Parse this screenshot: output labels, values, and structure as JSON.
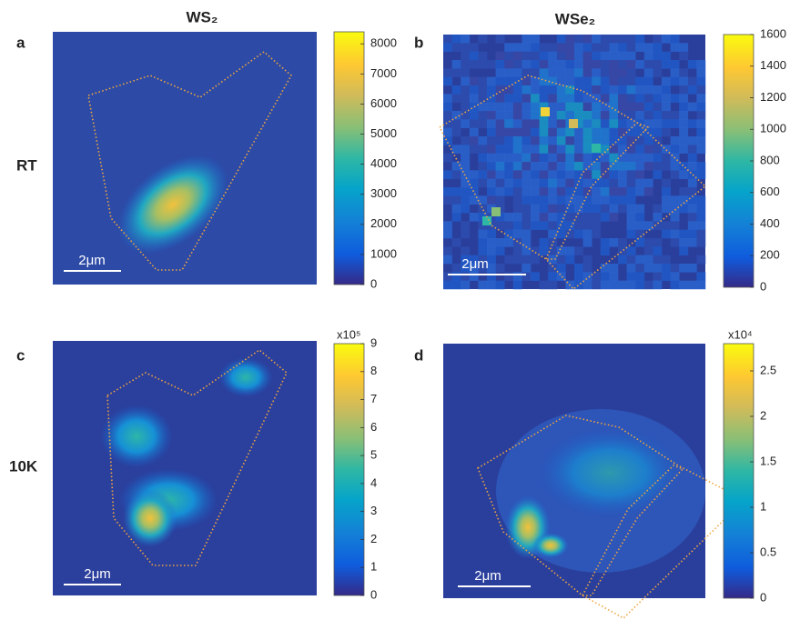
{
  "column_titles": [
    "WS₂",
    "WSe₂"
  ],
  "row_labels": [
    "RT",
    "10K"
  ],
  "panels": [
    {
      "label": "a",
      "scale_bar": "2μm",
      "colorbar": {
        "lim": [
          0,
          8400
        ],
        "ticks": [
          0,
          1000,
          2000,
          3000,
          4000,
          5000,
          6000,
          7000,
          8000
        ]
      }
    },
    {
      "label": "b",
      "scale_bar": "2μm",
      "colorbar": {
        "lim": [
          0,
          1600
        ],
        "ticks": [
          0,
          200,
          400,
          600,
          800,
          1000,
          1200,
          1400,
          1600
        ]
      }
    },
    {
      "label": "c",
      "scale_bar": "2μm",
      "colorbar": {
        "multiplier": "x10⁵",
        "lim": [
          0,
          9
        ],
        "ticks": [
          0,
          1,
          2,
          3,
          4,
          5,
          6,
          7,
          8,
          9
        ]
      }
    },
    {
      "label": "d",
      "scale_bar": "2μm",
      "colorbar": {
        "multiplier": "x10⁴",
        "lim": [
          0,
          2.8
        ],
        "ticks": [
          0,
          0.5,
          1,
          1.5,
          2,
          2.5
        ]
      }
    }
  ]
}
